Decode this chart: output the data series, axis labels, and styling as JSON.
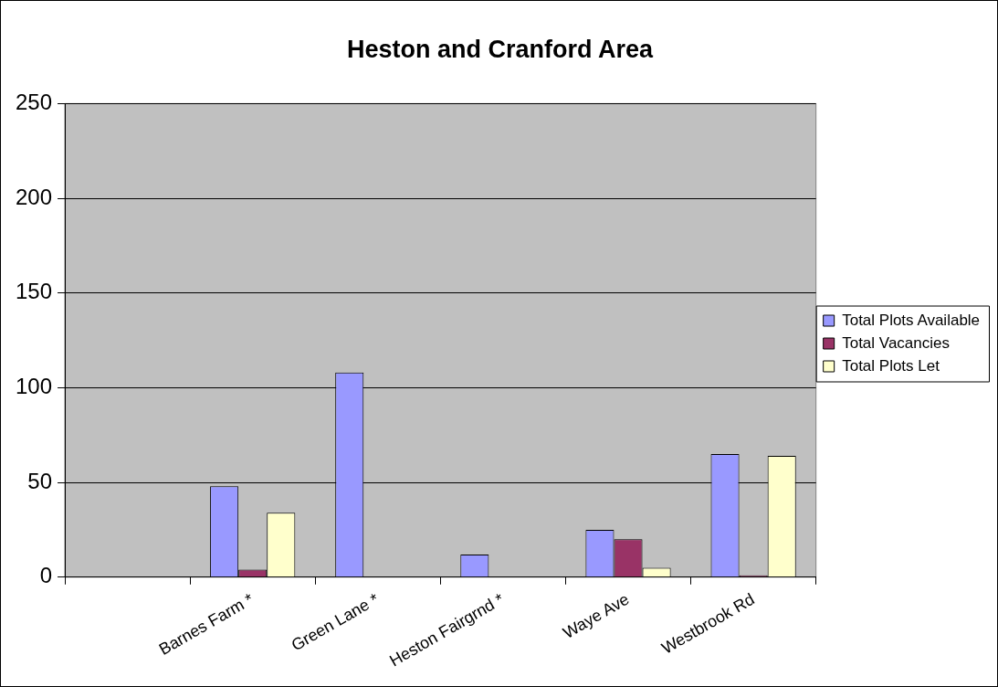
{
  "chart_data": {
    "type": "bar",
    "title": "Heston and Cranford Area",
    "categories": [
      null,
      "Barnes Farm *",
      "Green Lane *",
      "Heston Fairgrnd *",
      "Waye Ave",
      "Westbrook Rd"
    ],
    "series": [
      {
        "name": "Total Plots Available",
        "color": "#9999ff",
        "values": [
          null,
          48,
          108,
          12,
          25,
          65
        ]
      },
      {
        "name": "Total Vacancies",
        "color": "#993366",
        "values": [
          null,
          4,
          0,
          0,
          20,
          1
        ]
      },
      {
        "name": "Total Plots Let",
        "color": "#ffffcc",
        "values": [
          null,
          34,
          0,
          0,
          5,
          64
        ]
      }
    ],
    "ylim": [
      0,
      250
    ],
    "yticks": [
      0,
      50,
      100,
      150,
      200,
      250
    ],
    "grid": "y",
    "legend": "right"
  }
}
